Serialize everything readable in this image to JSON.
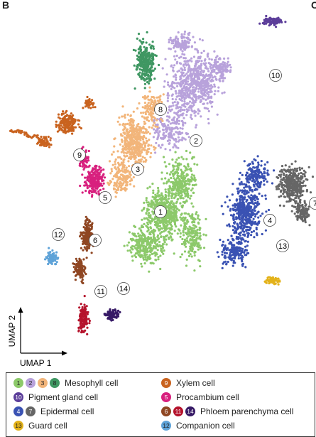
{
  "panel": {
    "letter": "B",
    "next_letter": "C"
  },
  "colors": {
    "1": "#8cc96a",
    "2": "#b8a2db",
    "3": "#f2b57a",
    "4": "#3a52b3",
    "5": "#d8207e",
    "6": "#8f4622",
    "7": "#666666",
    "8": "#3f9762",
    "9": "#c9631f",
    "10": "#5c3e9a",
    "11": "#b5132c",
    "12": "#5fa3d8",
    "13": "#e3b21a",
    "14": "#371a66"
  },
  "chart_data": {
    "type": "scatter",
    "title": "",
    "xlabel": "UMAP 1",
    "ylabel": "UMAP 2",
    "clusters": [
      {
        "id": "1",
        "center": [
          -0.15,
          -0.5
        ]
      },
      {
        "id": "2",
        "center": [
          1.1,
          2.0
        ]
      },
      {
        "id": "3",
        "center": [
          -0.95,
          1.0
        ]
      },
      {
        "id": "4",
        "center": [
          3.7,
          -0.8
        ]
      },
      {
        "id": "5",
        "center": [
          -2.1,
          0.0
        ]
      },
      {
        "id": "6",
        "center": [
          -2.45,
          -1.5
        ]
      },
      {
        "id": "7",
        "center": [
          5.3,
          -0.2
        ]
      },
      {
        "id": "8",
        "center": [
          -0.15,
          3.1
        ]
      },
      {
        "id": "9",
        "center": [
          -3.0,
          1.5
        ]
      },
      {
        "id": "10",
        "center": [
          3.9,
          4.3
        ]
      },
      {
        "id": "11",
        "center": [
          -2.25,
          -3.3
        ]
      },
      {
        "id": "12",
        "center": [
          -3.75,
          -1.3
        ]
      },
      {
        "id": "13",
        "center": [
          4.15,
          -1.7
        ]
      },
      {
        "id": "14",
        "center": [
          -1.45,
          -3.2
        ]
      }
    ]
  },
  "legend": {
    "items": [
      {
        "ids": [
          "1",
          "2",
          "3",
          "8"
        ],
        "label": "Mesophyll cell"
      },
      {
        "ids": [
          "9"
        ],
        "label": "Xylem cell"
      },
      {
        "ids": [
          "10"
        ],
        "label": "Pigment gland cell"
      },
      {
        "ids": [
          "5"
        ],
        "label": "Procambium cell"
      },
      {
        "ids": [
          "4",
          "7"
        ],
        "label": "Epidermal cell"
      },
      {
        "ids": [
          "6",
          "11",
          "14"
        ],
        "label": "Phloem parenchyma cell"
      },
      {
        "ids": [
          "13"
        ],
        "label": "Guard cell"
      },
      {
        "ids": [
          "12"
        ],
        "label": "Companion cell"
      }
    ]
  }
}
